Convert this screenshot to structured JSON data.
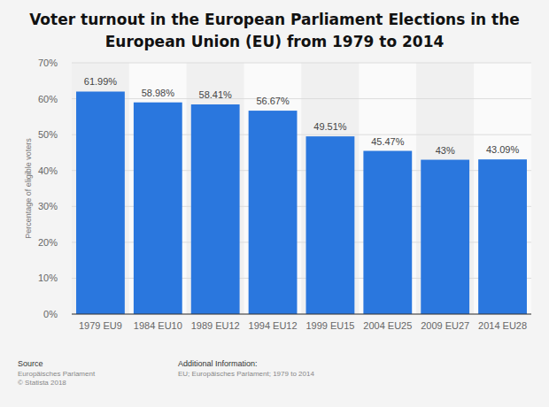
{
  "chart_data": {
    "type": "bar",
    "title": "Voter turnout in the European Parliament Elections in the European Union (EU) from 1979 to 2014",
    "y_label": "Percentage of eligible voters",
    "categories": [
      "1979 EU9",
      "1984 EU10",
      "1989 EU12",
      "1994 EU12",
      "1999 EU15",
      "2004 EU25",
      "2009 EU27",
      "2014 EU28"
    ],
    "values": [
      61.99,
      58.98,
      58.41,
      56.67,
      49.51,
      45.47,
      43,
      43.09
    ],
    "value_labels": [
      "61.99%",
      "58.98%",
      "58.41%",
      "56.67%",
      "49.51%",
      "45.47%",
      "43%",
      "43.09%"
    ],
    "data_labels": true,
    "color": "#2a77de",
    "ylim": [
      0,
      70
    ],
    "yticks": [
      {
        "value": 0,
        "label": "0%"
      },
      {
        "value": 10,
        "label": "10%"
      },
      {
        "value": 20,
        "label": "20%"
      },
      {
        "value": 30,
        "label": "30%"
      },
      {
        "value": 40,
        "label": "40%"
      },
      {
        "value": 50,
        "label": "50%"
      },
      {
        "value": 60,
        "label": "60%"
      },
      {
        "value": 70,
        "label": "70%"
      }
    ],
    "grid": true,
    "source": {
      "heading": "Source",
      "lines": [
        "Europäisches Parlament",
        "© Statista 2018"
      ]
    },
    "additional_info": {
      "heading": "Additional Information:",
      "text": "EU; Europäisches Parlament; 1979 to 2014"
    }
  }
}
